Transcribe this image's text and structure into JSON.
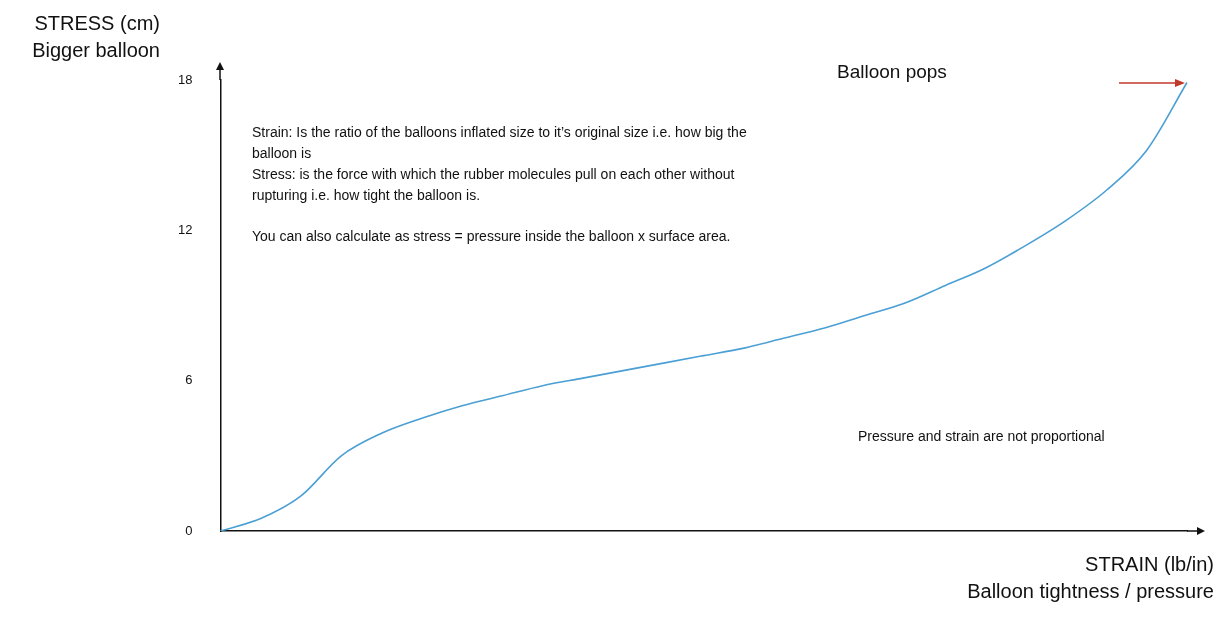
{
  "chart_data": {
    "type": "line",
    "ylabel": "STRESS (cm)\nBigger balloon",
    "xlabel": "STRAIN (lb/in)\nBalloon tightness / pressure",
    "categories": [
      null,
      null,
      null,
      null,
      null,
      null,
      null,
      null,
      null,
      null,
      null,
      null,
      null,
      null,
      null,
      null,
      null,
      null,
      null,
      null,
      null,
      null,
      null,
      null,
      null
    ],
    "series": [
      {
        "color": "#4a9fd4",
        "values": [
          0,
          0.5,
          1.4,
          3.0,
          3.9,
          4.5,
          5.0,
          5.4,
          5.8,
          6.1,
          6.4,
          6.7,
          7.0,
          7.3,
          7.7,
          8.1,
          8.6,
          9.1,
          9.8,
          10.5,
          11.4,
          12.4,
          13.6,
          15.2,
          17.9
        ]
      }
    ],
    "ylim": [
      0,
      18
    ],
    "yticks": [
      0,
      6,
      12,
      18
    ],
    "tick_labels": "y",
    "grid": false,
    "legend": false,
    "marker": "none",
    "line_style": "solid",
    "annotations": [
      "Balloon pops",
      "Strain: Is the ratio of the balloons inflated size to it’s original size i.e. how big the balloon is",
      "Stress: is the force with which the rubber molecules pull on each other without rupturing i.e. how tight the balloon is.",
      "You can also calculate as stress = pressure inside the balloon x surface area.",
      "Pressure and strain are not proportional"
    ]
  }
}
